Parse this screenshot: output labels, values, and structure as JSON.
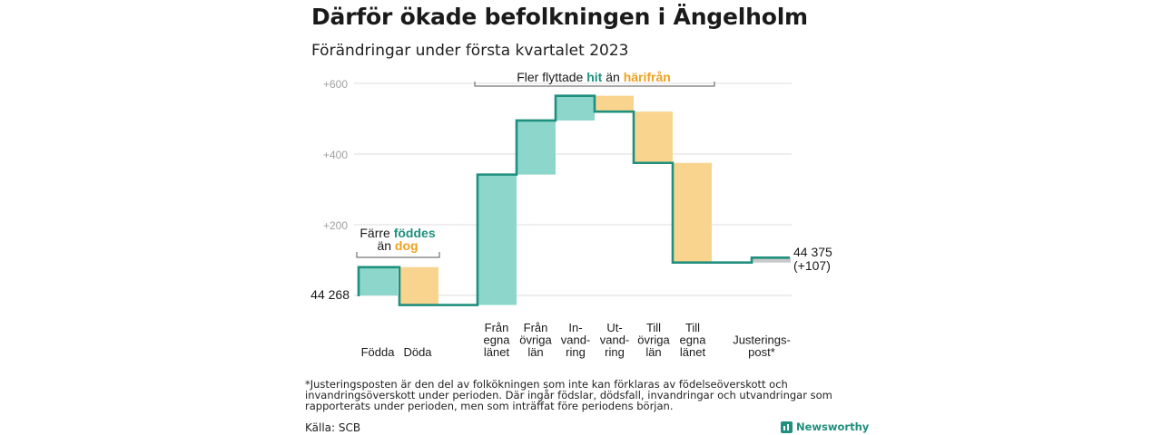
{
  "header": {
    "title": "Därför ökade befolkningen i Ängelholm",
    "subtitle": "Förändringar under första kvartalet 2023"
  },
  "chart_data": {
    "type": "waterfall",
    "start_value_label": "44 268",
    "end_value_label": "44 375",
    "end_change_label": "(+107)",
    "yticks": [
      "+600",
      "+400",
      "+200"
    ],
    "ytick_values": [
      600,
      400,
      200
    ],
    "ylim": [
      -40,
      620
    ],
    "steps": [
      {
        "label": [
          "Födda"
        ],
        "from": 0,
        "to": 80,
        "kind": "gain"
      },
      {
        "label": [
          "Döda"
        ],
        "from": 80,
        "to": -27,
        "kind": "loss"
      },
      {
        "label": [
          "Från",
          "egna",
          "länet"
        ],
        "from": -27,
        "to": 342,
        "kind": "gain"
      },
      {
        "label": [
          "Från",
          "övriga",
          "län"
        ],
        "from": 342,
        "to": 495,
        "kind": "gain"
      },
      {
        "label": [
          "In-",
          "vand-",
          "ring"
        ],
        "from": 495,
        "to": 565,
        "kind": "gain"
      },
      {
        "label": [
          "Ut-",
          "vand-",
          "ring"
        ],
        "from": 565,
        "to": 520,
        "kind": "loss"
      },
      {
        "label": [
          "Till",
          "övriga",
          "län"
        ],
        "from": 520,
        "to": 375,
        "kind": "loss"
      },
      {
        "label": [
          "Till",
          "egna",
          "länet"
        ],
        "from": 375,
        "to": 93,
        "kind": "loss"
      },
      {
        "label": [
          "Justerings-",
          "post*"
        ],
        "from": 93,
        "to": 107,
        "kind": "adjustment"
      }
    ],
    "annotations": {
      "births": {
        "line1": "Färre ",
        "line1_highlight": "föddes",
        "line2": "än ",
        "line2_highlight": "dog"
      },
      "migration": {
        "prefix": "Fler flyttade ",
        "highlight1": "hit",
        "middle": " än ",
        "highlight2": "härifrån"
      }
    },
    "colors": {
      "gain_fill": "#8cd6cb",
      "loss_fill": "#f9d48e",
      "adjustment_fill": "#c9c9c9",
      "step_line": "#1f8f7e",
      "grid": "#dddddd",
      "tick_text": "#a0a0a0",
      "highlight_green": "#1f8f7e",
      "highlight_orange": "#f0a020"
    }
  },
  "footnote": "*Justeringsposten är den del av folkökningen som inte kan förklaras av födelseöverskott och invandringsöverskott under perioden. Där ingår födslar, dödsfall, invandringar och utvandringar som rapporterats under perioden, men som inträffat före periodens början.",
  "source": "Källa: SCB",
  "brand": "Newsworthy"
}
